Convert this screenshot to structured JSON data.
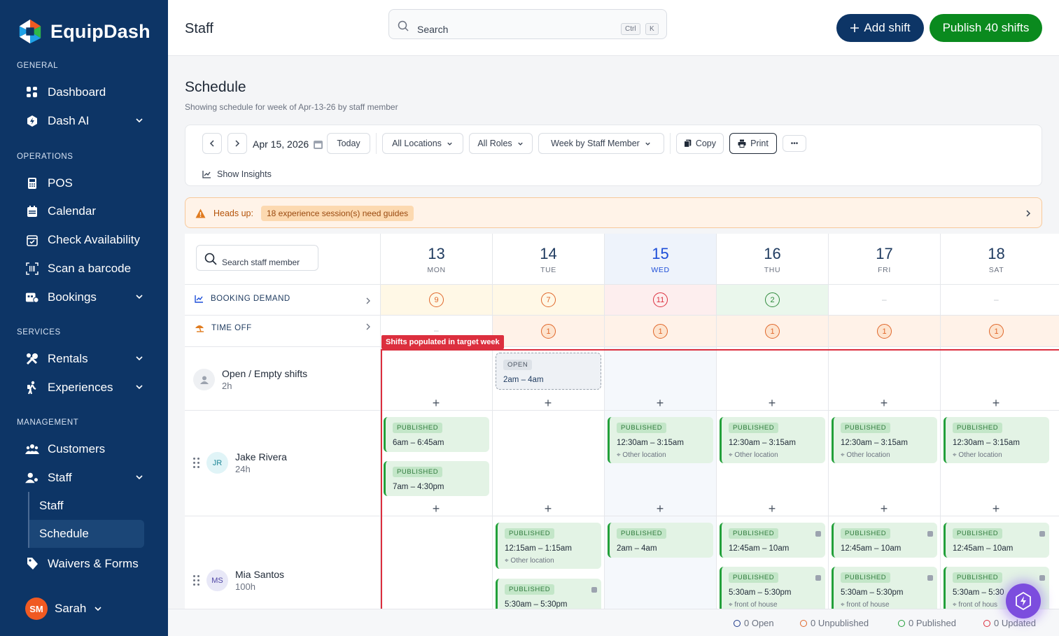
{
  "app": {
    "name": "EquipDash"
  },
  "sidebar": {
    "sections": {
      "general": "GENERAL",
      "operations": "OPERATIONS",
      "services": "SERVICES",
      "management": "MANAGEMENT"
    },
    "items": {
      "dashboard": "Dashboard",
      "dash_ai": "Dash AI",
      "pos": "POS",
      "calendar": "Calendar",
      "check_availability": "Check Availability",
      "scan_barcode": "Scan a barcode",
      "bookings": "Bookings",
      "rentals": "Rentals",
      "experiences": "Experiences",
      "customers": "Customers",
      "staff": "Staff",
      "waivers": "Waivers & Forms"
    },
    "sub_items": {
      "staff": "Staff",
      "schedule": "Schedule"
    },
    "user": {
      "initials": "SM",
      "name": "Sarah"
    }
  },
  "topbar": {
    "title": "Staff",
    "search_placeholder": "Search",
    "kbd_ctrl": "Ctrl",
    "kbd_k": "K",
    "add_shift": "Add shift",
    "publish": "Publish 40 shifts"
  },
  "schedule": {
    "title": "Schedule",
    "subtitle": "Showing schedule for week of Apr-13-26 by staff member",
    "date": "Apr 15, 2026",
    "today": "Today",
    "locations": "All Locations",
    "roles": "All Roles",
    "view": "Week by Staff Member",
    "copy": "Copy",
    "print": "Print",
    "more": "•••",
    "insights": "Show Insights"
  },
  "headsup": {
    "label": "Heads up:",
    "message": "18 experience session(s) need guides"
  },
  "grid": {
    "staff_search": "Search staff member",
    "days": [
      {
        "num": "13",
        "name": "MON"
      },
      {
        "num": "14",
        "name": "TUE"
      },
      {
        "num": "15",
        "name": "WED"
      },
      {
        "num": "16",
        "name": "THU"
      },
      {
        "num": "17",
        "name": "FRI"
      },
      {
        "num": "18",
        "name": "SAT"
      }
    ],
    "booking_demand": {
      "label": "BOOKING DEMAND",
      "values": [
        "9",
        "7",
        "11",
        "2",
        "–",
        "–"
      ]
    },
    "time_off": {
      "label": "TIME OFF",
      "values": [
        "–",
        "1",
        "1",
        "1",
        "1",
        "1"
      ]
    },
    "target_tag": "Shifts populated in target week",
    "open_row": {
      "name": "Open / Empty shifts",
      "hours": "2h",
      "badge": "OPEN",
      "time": "2am – 4am"
    },
    "published": "PUBLISHED",
    "jake": {
      "initials": "JR",
      "name": "Jake Rivera",
      "hours": "24h",
      "shifts": {
        "mon1": "6am – 6:45am",
        "mon2": "7am – 4:30pm",
        "wed": "12:30am – 3:15am",
        "thu": "12:30am – 3:15am",
        "fri": "12:30am – 3:15am",
        "sat": "12:30am – 3:15am",
        "other_location": "Other location"
      }
    },
    "mia": {
      "initials": "MS",
      "name": "Mia Santos",
      "hours": "100h",
      "shifts": {
        "tue1": "12:15am – 1:15am",
        "tue2": "5:30am – 5:30pm",
        "wed": "2am – 4am",
        "thu1": "12:45am – 10am",
        "fri1": "12:45am – 10am",
        "sat1": "12:45am – 10am",
        "thu2": "5:30am – 5:30pm",
        "fri2": "5:30am – 5:30pm",
        "sat2": "5:30am – 5:30",
        "other_location": "Other location",
        "front": "front of house",
        "front_short": "front of hous"
      }
    }
  },
  "footer": {
    "open": "0 Open",
    "unpublished": "0 Unpublished",
    "published": "0 Published",
    "updated": "0 Updated"
  },
  "colors": {
    "brand": "#0d3566",
    "publish": "#0a8a1e",
    "target": "#dc2f3e"
  }
}
